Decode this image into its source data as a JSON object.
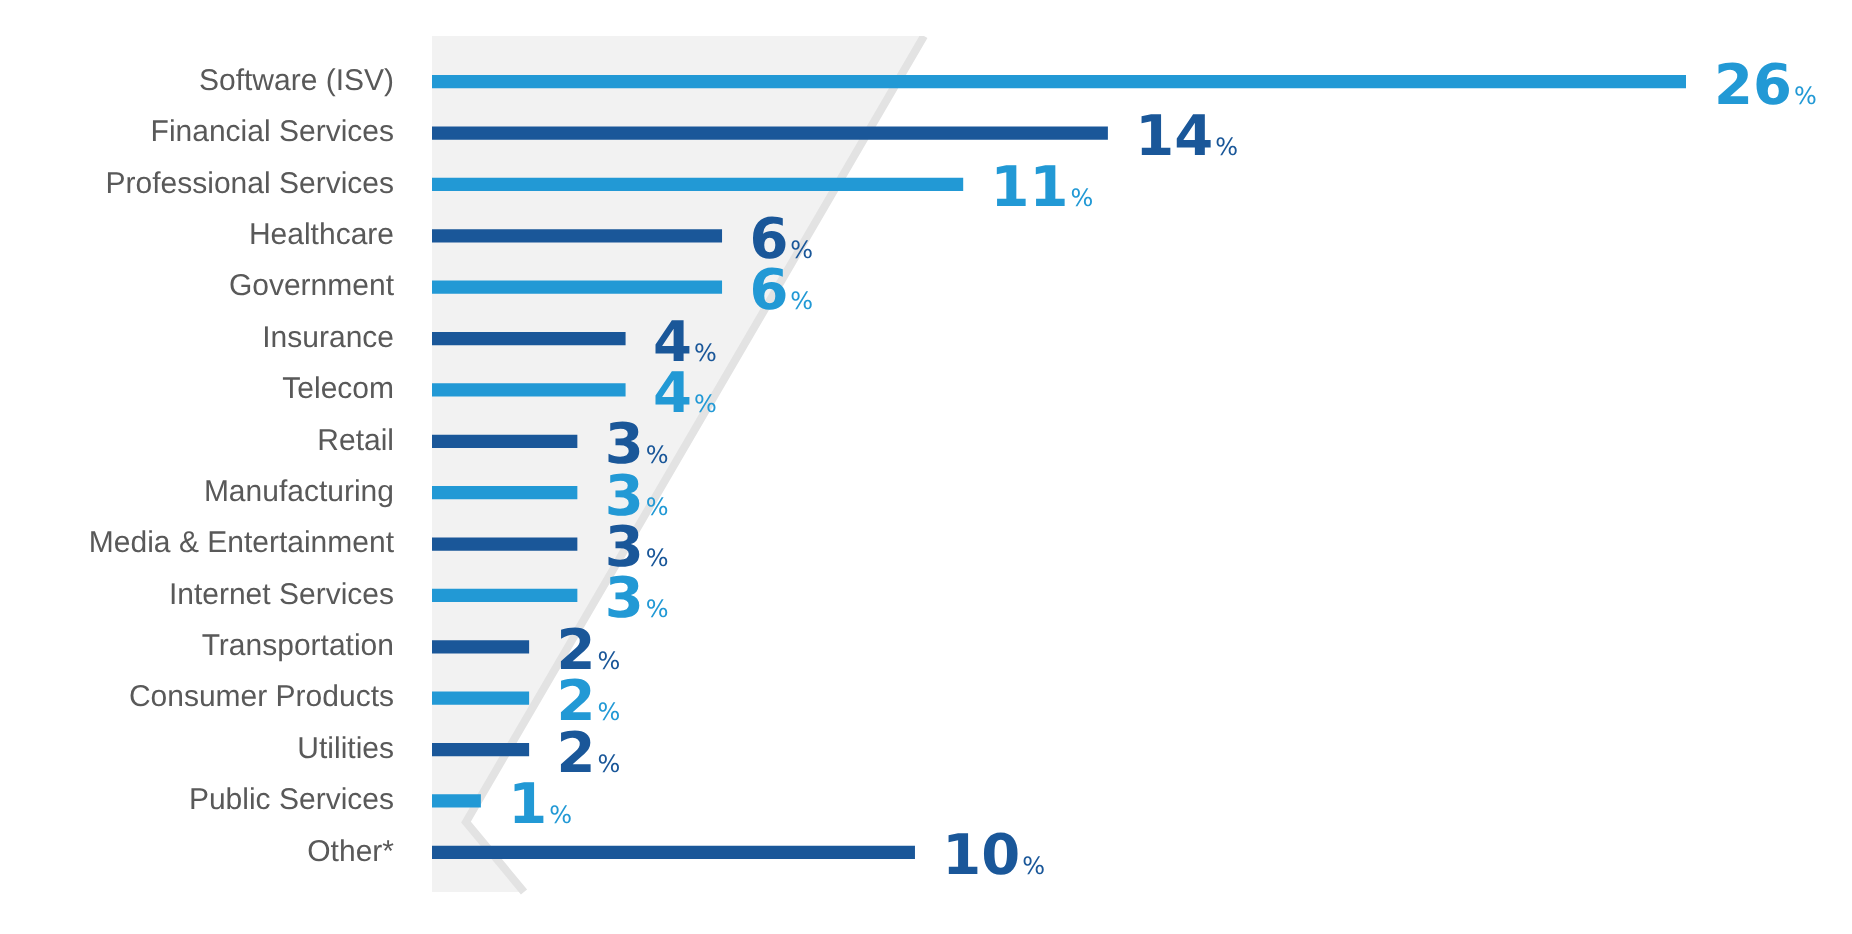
{
  "chart_data": {
    "type": "bar",
    "orientation": "horizontal",
    "categories": [
      "Software (ISV)",
      "Financial Services",
      "Professional Services",
      "Healthcare",
      "Government",
      "Insurance",
      "Telecom",
      "Retail",
      "Manufacturing",
      "Media & Entertainment",
      "Internet Services",
      "Transportation",
      "Consumer Products",
      "Utilities",
      "Public Services",
      "Other*"
    ],
    "values": [
      26,
      14,
      11,
      6,
      6,
      4,
      4,
      3,
      3,
      3,
      3,
      2,
      2,
      2,
      1,
      10
    ],
    "colors": [
      "#2299d5",
      "#1a5799",
      "#2299d5",
      "#1a5799",
      "#2299d5",
      "#1a5799",
      "#2299d5",
      "#1a5799",
      "#2299d5",
      "#1a5799",
      "#2299d5",
      "#1a5799",
      "#2299d5",
      "#1a5799",
      "#2299d5",
      "#1a5799"
    ],
    "value_labels": [
      "26%",
      "14%",
      "11%",
      "6%",
      "6%",
      "4%",
      "4%",
      "3%",
      "3%",
      "3%",
      "3%",
      "2%",
      "2%",
      "2%",
      "1%",
      "10%"
    ],
    "tick_labels": "y",
    "grid": false,
    "legend": false
  }
}
